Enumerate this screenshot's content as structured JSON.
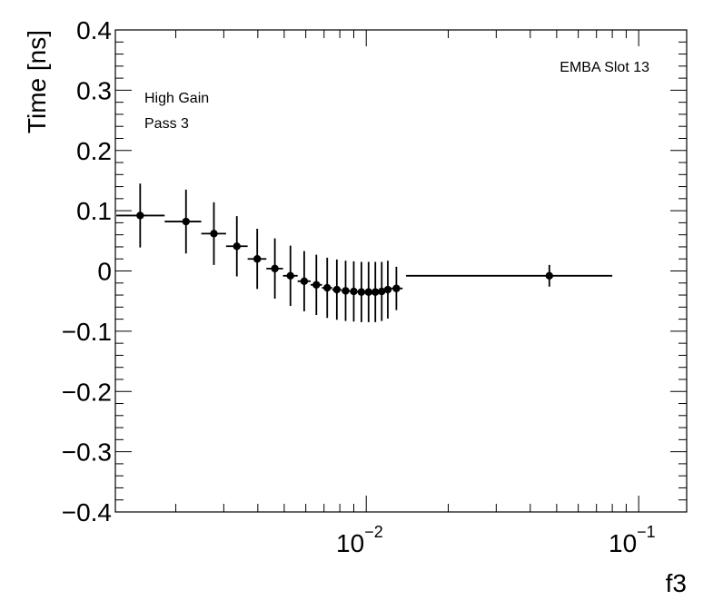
{
  "chart_data": {
    "type": "scatter",
    "title": "",
    "xlabel": "f3",
    "ylabel": "Time [ns]",
    "xscale": "log",
    "xlim": [
      0.0012,
      0.15
    ],
    "ylim": [
      -0.4,
      0.4
    ],
    "yticks": [
      {
        "value": 0.4,
        "label": "0.4"
      },
      {
        "value": 0.3,
        "label": "0.3"
      },
      {
        "value": 0.2,
        "label": "0.2"
      },
      {
        "value": 0.1,
        "label": "0.1"
      },
      {
        "value": 0.0,
        "label": "0"
      },
      {
        "value": -0.1,
        "label": "−0.1"
      },
      {
        "value": -0.2,
        "label": "−0.2"
      },
      {
        "value": -0.3,
        "label": "−0.3"
      },
      {
        "value": -0.4,
        "label": "−0.4"
      }
    ],
    "xticks": [
      {
        "value": 0.01,
        "base": "10",
        "exp": "−2"
      },
      {
        "value": 0.1,
        "base": "10",
        "exp": "−1"
      }
    ],
    "annotations": {
      "top_right": "EMBA Slot 13",
      "line1": "High Gain",
      "line2": "Pass 3"
    },
    "series": [
      {
        "name": "EMBA Slot 13",
        "points": [
          {
            "x": 0.00148,
            "xlo": 0.00121,
            "xhi": 0.00182,
            "y": 0.092,
            "yerr": 0.053
          },
          {
            "x": 0.00218,
            "xlo": 0.00182,
            "xhi": 0.00248,
            "y": 0.082,
            "yerr": 0.053
          },
          {
            "x": 0.00276,
            "xlo": 0.00248,
            "xhi": 0.00306,
            "y": 0.062,
            "yerr": 0.052
          },
          {
            "x": 0.00335,
            "xlo": 0.00306,
            "xhi": 0.00367,
            "y": 0.041,
            "yerr": 0.05
          },
          {
            "x": 0.00398,
            "xlo": 0.00367,
            "xhi": 0.0043,
            "y": 0.02,
            "yerr": 0.05
          },
          {
            "x": 0.00462,
            "xlo": 0.0043,
            "xhi": 0.00495,
            "y": 0.004,
            "yerr": 0.05
          },
          {
            "x": 0.00527,
            "xlo": 0.00495,
            "xhi": 0.0056,
            "y": -0.008,
            "yerr": 0.05
          },
          {
            "x": 0.00592,
            "xlo": 0.0056,
            "xhi": 0.00625,
            "y": -0.017,
            "yerr": 0.05
          },
          {
            "x": 0.00656,
            "xlo": 0.00625,
            "xhi": 0.00688,
            "y": -0.023,
            "yerr": 0.05
          },
          {
            "x": 0.00719,
            "xlo": 0.00688,
            "xhi": 0.0075,
            "y": -0.028,
            "yerr": 0.05
          },
          {
            "x": 0.0078,
            "xlo": 0.0075,
            "xhi": 0.0081,
            "y": -0.031,
            "yerr": 0.05
          },
          {
            "x": 0.0084,
            "xlo": 0.0081,
            "xhi": 0.0087,
            "y": -0.033,
            "yerr": 0.05
          },
          {
            "x": 0.009,
            "xlo": 0.0087,
            "xhi": 0.0093,
            "y": -0.034,
            "yerr": 0.05
          },
          {
            "x": 0.0096,
            "xlo": 0.0093,
            "xhi": 0.0099,
            "y": -0.035,
            "yerr": 0.05
          },
          {
            "x": 0.0102,
            "xlo": 0.0099,
            "xhi": 0.0105,
            "y": -0.035,
            "yerr": 0.05
          },
          {
            "x": 0.0108,
            "xlo": 0.0105,
            "xhi": 0.0111,
            "y": -0.035,
            "yerr": 0.05
          },
          {
            "x": 0.0114,
            "xlo": 0.0111,
            "xhi": 0.0117,
            "y": -0.034,
            "yerr": 0.049
          },
          {
            "x": 0.012,
            "xlo": 0.0117,
            "xhi": 0.01235,
            "y": -0.031,
            "yerr": 0.048
          },
          {
            "x": 0.0129,
            "xlo": 0.01235,
            "xhi": 0.0136,
            "y": -0.029,
            "yerr": 0.036
          },
          {
            "x": 0.047,
            "xlo": 0.014,
            "xhi": 0.08,
            "y": -0.008,
            "yerr": 0.018
          }
        ]
      }
    ]
  }
}
